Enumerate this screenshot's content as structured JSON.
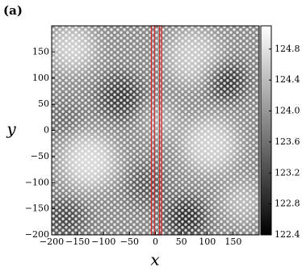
{
  "chart_data": {
    "type": "heatmap",
    "panel_label": "(a)",
    "xlabel": "x",
    "ylabel": "y",
    "xlim": [
      -200,
      200
    ],
    "ylim": [
      -200,
      200
    ],
    "xticks": [
      {
        "value": -200,
        "label": "−200"
      },
      {
        "value": -150,
        "label": "−150"
      },
      {
        "value": -100,
        "label": "−100"
      },
      {
        "value": -50,
        "label": "−50"
      },
      0,
      50,
      100,
      150
    ],
    "yticks": [
      {
        "value": -200,
        "label": "−200"
      },
      {
        "value": -150,
        "label": "−150"
      },
      {
        "value": -100,
        "label": "−100"
      },
      {
        "value": -50,
        "label": "−50"
      },
      0,
      50,
      100,
      150
    ],
    "colormap": "gray",
    "clim": [
      122.4,
      125.1
    ],
    "colorbar_ticks": [
      122.4,
      122.8,
      123.2,
      123.6,
      {
        "value": 124,
        "label": "124.0"
      },
      124.4,
      124.8
    ],
    "highlight_regions": [
      {
        "x": [
          -8,
          12
        ],
        "color": "#d62728"
      },
      {
        "x": [
          -2,
          8
        ],
        "color": "#d62728"
      }
    ]
  }
}
